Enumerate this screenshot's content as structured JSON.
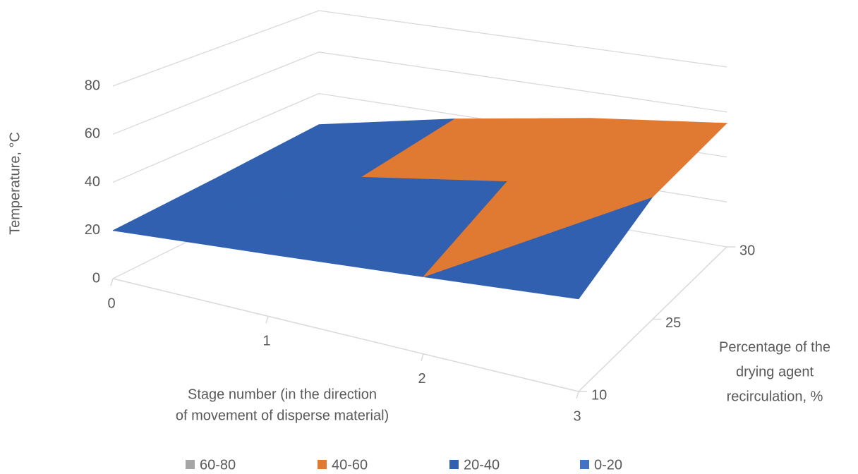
{
  "chart_data": {
    "type": "surface",
    "ylabel": "Temperature, °C",
    "xlabel": [
      "Stage number (in the direction",
      "of movement of disperse material)"
    ],
    "depth_label": [
      "Percentage of the",
      "drying agent",
      "recirculation, %"
    ],
    "categories": [
      "0",
      "1",
      "2",
      "3"
    ],
    "depth_categories": [
      "10",
      "25",
      "30"
    ],
    "zlim": [
      0,
      80
    ],
    "zticks": [
      0,
      20,
      40,
      60,
      80
    ],
    "series": [
      {
        "name": "10",
        "values": [
          20,
          25,
          30,
          35
        ]
      },
      {
        "name": "25",
        "values": [
          22,
          35,
          45,
          50
        ]
      },
      {
        "name": "30",
        "values": [
          25,
          38,
          48,
          55
        ]
      }
    ],
    "bands": [
      {
        "name": "0-20",
        "color": "#4472c4"
      },
      {
        "name": "20-40",
        "color": "#3160b0"
      },
      {
        "name": "40-60",
        "color": "#e07a33"
      },
      {
        "name": "60-80",
        "color": "#a5a5a5"
      }
    ]
  }
}
